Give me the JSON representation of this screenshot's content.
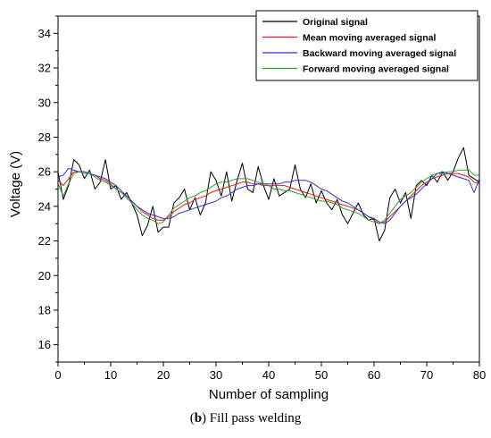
{
  "caption": {
    "label": "b",
    "text": ") Fill pass welding"
  },
  "chart_data": {
    "type": "line",
    "xlabel": "Number of sampling",
    "ylabel": "Voltage (V)",
    "xlim": [
      0,
      80
    ],
    "ylim": [
      15,
      35
    ],
    "xticks": [
      0,
      10,
      20,
      30,
      40,
      50,
      60,
      70,
      80
    ],
    "yticks": [
      16,
      18,
      20,
      22,
      24,
      26,
      28,
      30,
      32,
      34
    ],
    "legend_position": "top-right",
    "x": [
      0,
      1,
      2,
      3,
      4,
      5,
      6,
      7,
      8,
      9,
      10,
      11,
      12,
      13,
      14,
      15,
      16,
      17,
      18,
      19,
      20,
      21,
      22,
      23,
      24,
      25,
      26,
      27,
      28,
      29,
      30,
      31,
      32,
      33,
      34,
      35,
      36,
      37,
      38,
      39,
      40,
      41,
      42,
      43,
      44,
      45,
      46,
      47,
      48,
      49,
      50,
      51,
      52,
      53,
      54,
      55,
      56,
      57,
      58,
      59,
      60,
      61,
      62,
      63,
      64,
      65,
      66,
      67,
      68,
      69,
      70,
      71,
      72,
      73,
      74,
      75,
      76,
      77,
      78,
      79,
      80
    ],
    "series": [
      {
        "name": "Original signal",
        "color": "#000000",
        "values": [
          26.0,
          24.4,
          25.2,
          26.7,
          26.4,
          25.6,
          26.1,
          25.0,
          25.4,
          26.7,
          25.0,
          25.2,
          24.4,
          24.8,
          24.2,
          23.5,
          22.3,
          22.9,
          24.0,
          22.5,
          22.8,
          22.8,
          24.2,
          24.5,
          25.0,
          23.8,
          24.5,
          23.5,
          24.2,
          26.0,
          25.5,
          24.6,
          26.0,
          24.3,
          25.5,
          26.5,
          25.0,
          24.8,
          26.3,
          25.2,
          24.4,
          25.6,
          24.6,
          24.8,
          25.0,
          26.4,
          25.0,
          24.5,
          25.3,
          24.2,
          24.9,
          24.2,
          23.8,
          24.4,
          23.5,
          23.0,
          23.6,
          24.2,
          23.5,
          23.2,
          23.3,
          22.0,
          22.6,
          24.5,
          25.0,
          24.2,
          24.8,
          23.3,
          25.2,
          25.5,
          25.2,
          25.8,
          25.4,
          26.0,
          25.5,
          26.0,
          26.8,
          27.4,
          25.8,
          25.6,
          25.4
        ]
      },
      {
        "name": "Mean moving averaged signal",
        "color": "#e41a1c",
        "values": [
          25.5,
          25.2,
          25.6,
          26.0,
          26.0,
          26.0,
          25.9,
          25.8,
          25.6,
          25.5,
          25.3,
          25.0,
          24.8,
          24.6,
          24.3,
          24.0,
          23.7,
          23.5,
          23.3,
          23.2,
          23.2,
          23.4,
          23.7,
          23.9,
          24.1,
          24.2,
          24.4,
          24.5,
          24.6,
          24.8,
          24.9,
          25.0,
          25.1,
          25.2,
          25.3,
          25.4,
          25.4,
          25.3,
          25.3,
          25.2,
          25.2,
          25.2,
          25.2,
          25.2,
          25.1,
          25.0,
          24.9,
          24.8,
          24.7,
          24.6,
          24.5,
          24.4,
          24.3,
          24.2,
          24.1,
          24.0,
          23.9,
          23.8,
          23.6,
          23.4,
          23.2,
          23.0,
          23.1,
          23.4,
          23.7,
          24.0,
          24.3,
          24.6,
          24.9,
          25.2,
          25.4,
          25.6,
          25.7,
          25.8,
          25.9,
          25.9,
          25.9,
          25.8,
          25.7,
          25.4,
          25.3
        ]
      },
      {
        "name": "Backward moving averaged signal",
        "color": "#3030d0",
        "values": [
          25.7,
          25.8,
          26.2,
          26.1,
          26.0,
          26.0,
          25.9,
          25.8,
          25.7,
          25.6,
          25.4,
          25.2,
          24.9,
          24.6,
          24.3,
          24.0,
          23.8,
          23.6,
          23.5,
          23.4,
          23.3,
          23.3,
          23.4,
          23.6,
          23.7,
          23.8,
          23.9,
          24.0,
          24.1,
          24.2,
          24.3,
          24.5,
          24.6,
          24.8,
          25.0,
          25.1,
          25.2,
          25.2,
          25.3,
          25.3,
          25.3,
          25.3,
          25.3,
          25.4,
          25.4,
          25.5,
          25.5,
          25.5,
          25.4,
          25.2,
          25.0,
          24.9,
          24.7,
          24.5,
          24.3,
          24.2,
          24.0,
          23.8,
          23.6,
          23.4,
          23.3,
          23.1,
          23.0,
          23.2,
          23.6,
          24.0,
          24.3,
          24.5,
          24.7,
          25.0,
          25.3,
          25.6,
          25.9,
          26.0,
          25.9,
          25.8,
          25.7,
          25.6,
          25.5,
          24.8,
          25.6
        ]
      },
      {
        "name": "Forward moving averaged signal",
        "color": "#2ca02c",
        "values": [
          25.3,
          24.6,
          25.3,
          25.9,
          26.0,
          25.9,
          25.9,
          25.7,
          25.5,
          25.4,
          25.2,
          25.0,
          24.8,
          24.5,
          24.2,
          23.8,
          23.5,
          23.3,
          23.2,
          23.0,
          23.1,
          23.5,
          23.9,
          24.1,
          24.3,
          24.5,
          24.6,
          24.8,
          24.9,
          25.1,
          25.3,
          25.4,
          25.4,
          25.5,
          25.6,
          25.6,
          25.6,
          25.5,
          25.4,
          25.3,
          25.2,
          25.0,
          25.0,
          24.9,
          24.9,
          24.8,
          24.7,
          24.6,
          24.5,
          24.4,
          24.3,
          24.3,
          24.2,
          24.1,
          23.9,
          23.8,
          23.7,
          23.6,
          23.4,
          23.2,
          23.1,
          23.0,
          23.2,
          23.6,
          24.0,
          24.4,
          24.6,
          24.8,
          25.1,
          25.4,
          25.6,
          25.8,
          25.9,
          25.9,
          26.0,
          26.0,
          26.1,
          26.1,
          26.1,
          25.8,
          25.8
        ]
      }
    ]
  }
}
